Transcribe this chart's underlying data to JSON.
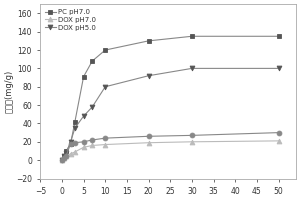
{
  "pc_x": [
    0,
    0.5,
    1,
    2,
    3,
    5,
    7,
    10,
    20,
    30,
    50
  ],
  "pc_y": [
    0,
    5,
    10,
    18,
    42,
    91,
    108,
    120,
    130,
    135,
    135
  ],
  "dox7_x": [
    0,
    0.5,
    1,
    2,
    3,
    5,
    7,
    10,
    20,
    30,
    50
  ],
  "dox7_y": [
    0,
    2,
    4,
    7,
    9,
    14,
    16,
    17,
    19,
    20,
    21
  ],
  "dox5_x": [
    0,
    0.5,
    1,
    2,
    3,
    5,
    7,
    10,
    20,
    30,
    50
  ],
  "dox5_y": [
    0,
    4,
    8,
    20,
    35,
    48,
    58,
    80,
    92,
    100,
    100
  ],
  "pc_circ_x": [
    0,
    0.5,
    1,
    2,
    3,
    5,
    7,
    10,
    20,
    30,
    50
  ],
  "pc_circ_y": [
    0,
    2,
    5,
    18,
    19,
    20,
    22,
    24,
    26,
    27,
    30
  ],
  "ylabel": "释药率(mg/g)",
  "xlim": [
    -5,
    54
  ],
  "ylim": [
    -20,
    170
  ],
  "xticks": [
    -5,
    0,
    5,
    10,
    15,
    20,
    25,
    30,
    35,
    40,
    45,
    50
  ],
  "yticks": [
    -20,
    0,
    20,
    40,
    60,
    80,
    100,
    120,
    140,
    160
  ],
  "bg_color": "#ffffff",
  "line_gray": "#888888",
  "line_lgray": "#bbbbbb",
  "line_dgray": "#555555"
}
